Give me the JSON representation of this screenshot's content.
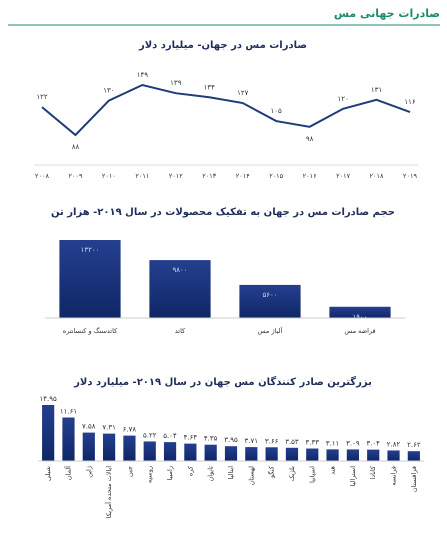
{
  "header": {
    "title": "صادرات جهانی مس"
  },
  "chart_data": [
    {
      "type": "line",
      "title": "صادرات مس در جهان- میلیارد دلار",
      "color": "#1f3c78",
      "categories": [
        "۲۰۰۸",
        "۲۰۰۹",
        "۲۰۱۰",
        "۲۰۱۱",
        "۲۰۱۲",
        "۲۰۱۳",
        "۲۰۱۴",
        "۲۰۱۵",
        "۲۰۱۶",
        "۲۰۱۷",
        "۲۰۱۸",
        "۲۰۱۹"
      ],
      "values": [
        122,
        88,
        130,
        149,
        139,
        134,
        127,
        105,
        98,
        120,
        131,
        116
      ],
      "value_labels": [
        "۱۲۲",
        "۸۸",
        "۱۳۰",
        "۱۴۹",
        "۱۳۹",
        "۱۳۴",
        "۱۲۷",
        "۱۰۵",
        "۹۸",
        "۱۲۰",
        "۱۳۱",
        "۱۱۶"
      ]
    },
    {
      "type": "bar",
      "title": "حجم صادرات مس در جهان به تفکیک محصولات در سال ۲۰۱۹- هزار تن",
      "color": "#1a3a80",
      "categories": [
        "کاتدسنگ و کنسانتره",
        "کاتد",
        "آلیاژ مس",
        "قراضه مس"
      ],
      "values": [
        13200,
        9800,
        5600,
        1900
      ],
      "value_labels": [
        "۱۳۲۰۰",
        "۹۸۰۰",
        "۵۶۰۰",
        "۱۹۰۰"
      ]
    },
    {
      "type": "bar",
      "title": "بزرگترین صادر کنندگان مس جهان در سال ۲۰۱۹- میلیارد دلار",
      "color": "#1a3a80",
      "categories": [
        "شیلی",
        "آلمان",
        "ژاپن",
        "ایالات متحده آمریکا",
        "چین",
        "روسیه",
        "زامبیا",
        "کره",
        "تایوان",
        "ایتالیا",
        "لهستان",
        "کنگو",
        "بلژیک",
        "اسپانیا",
        "هند",
        "استرالیا",
        "کانادا",
        "فرانسه",
        "قزاقستان"
      ],
      "values": [
        14.95,
        11.61,
        7.58,
        7.31,
        6.78,
        5.22,
        5.04,
        4.64,
        4.35,
        3.95,
        3.71,
        3.66,
        3.53,
        3.33,
        3.11,
        3.09,
        3.04,
        2.82,
        2.62
      ],
      "value_labels": [
        "۱۴.۹۵",
        "۱۱.۶۱",
        "۷.۵۸",
        "۷.۳۱",
        "۶.۷۸",
        "۵.۲۲",
        "۵.۰۴",
        "۴.۶۴",
        "۴.۳۵",
        "۳.۹۵",
        "۳.۷۱",
        "۳.۶۶",
        "۳.۵۳",
        "۳.۳۳",
        "۳.۱۱",
        "۳.۰۹",
        "۳.۰۴",
        "۲.۸۲",
        "۲.۶۲"
      ]
    }
  ]
}
